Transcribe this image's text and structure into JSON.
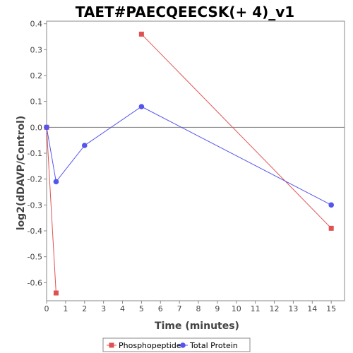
{
  "chart_data": {
    "type": "line",
    "title": "TAET#PAECQEECSK(+ 4)_v1",
    "xlabel": "Time (minutes)",
    "ylabel": "log2(dDAVP/Control)",
    "xlim": [
      0,
      15.7
    ],
    "ylim": [
      -0.67,
      0.41
    ],
    "xticks": [
      0,
      1,
      2,
      3,
      4,
      5,
      6,
      7,
      8,
      9,
      10,
      11,
      12,
      13,
      14,
      15
    ],
    "yticks": [
      -0.6,
      -0.5,
      -0.4,
      -0.3,
      -0.2,
      -0.1,
      0.0,
      0.1,
      0.2,
      0.3,
      0.4
    ],
    "ytick_labels": [
      "-0.6",
      "-0.5",
      "-0.4",
      "-0.3",
      "-0.2",
      "-0.1",
      "0.0",
      "0.1",
      "0.2",
      "0.3",
      "0.4"
    ],
    "zero_line": true,
    "grid": false,
    "legend_position": "bottom",
    "series": [
      {
        "name": "Phosphopeptide",
        "color": "#e05252",
        "marker": "square",
        "segments": [
          [
            {
              "x": 0,
              "y": 0.0
            },
            {
              "x": 0.5,
              "y": -0.64
            }
          ],
          [
            {
              "x": 5,
              "y": 0.36
            },
            {
              "x": 15,
              "y": -0.39
            }
          ]
        ]
      },
      {
        "name": "Total Protein",
        "color": "#5555ee",
        "marker": "circle",
        "segments": [
          [
            {
              "x": 0,
              "y": 0.0
            },
            {
              "x": 0.5,
              "y": -0.21
            },
            {
              "x": 2,
              "y": -0.07
            },
            {
              "x": 5,
              "y": 0.08
            },
            {
              "x": 15,
              "y": -0.3
            }
          ]
        ]
      }
    ]
  }
}
